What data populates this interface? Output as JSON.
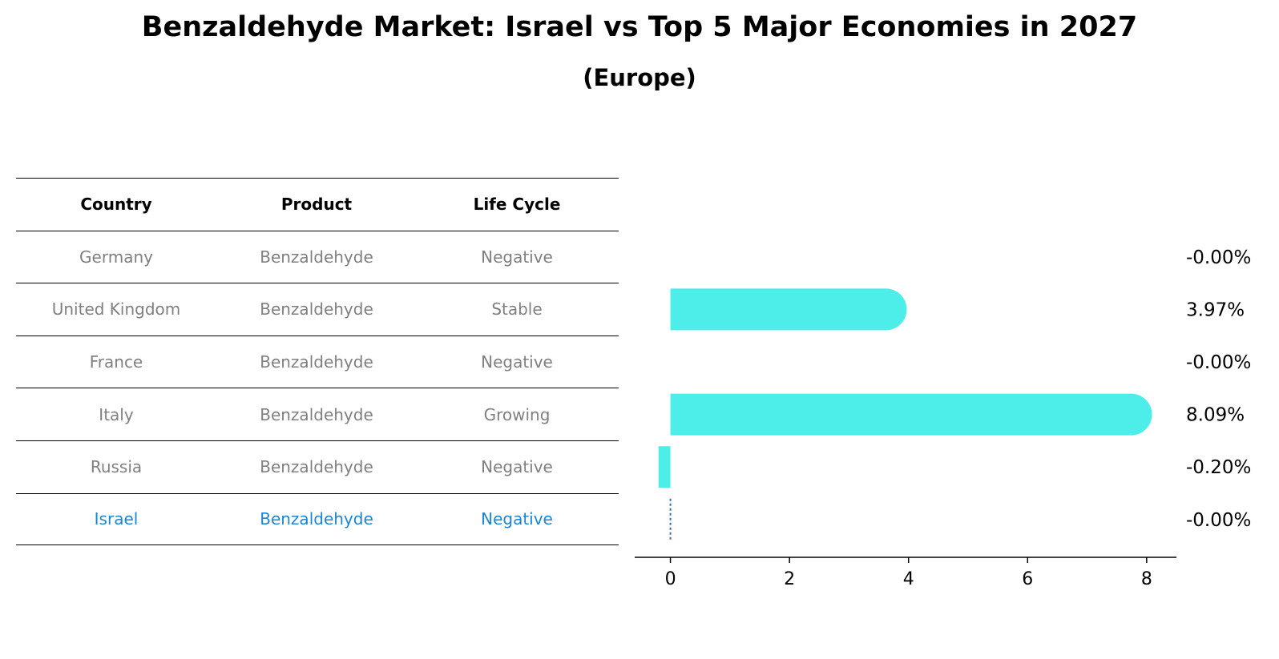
{
  "title": "Benzaldehyde Market: Israel vs Top 5 Major Economies in 2027",
  "subtitle": "(Europe)",
  "table": {
    "headers": [
      "Country",
      "Product",
      "Life Cycle"
    ],
    "rows": [
      [
        "Germany",
        "Benzaldehyde",
        "Negative"
      ],
      [
        "United Kingdom",
        "Benzaldehyde",
        "Stable"
      ],
      [
        "France",
        "Benzaldehyde",
        "Negative"
      ],
      [
        "Italy",
        "Benzaldehyde",
        "Growing"
      ],
      [
        "Russia",
        "Benzaldehyde",
        "Negative"
      ],
      [
        "Israel",
        "Benzaldehyde",
        "Negative"
      ]
    ]
  },
  "chart_data": {
    "type": "bar",
    "orientation": "horizontal",
    "categories": [
      "Germany",
      "United Kingdom",
      "France",
      "Italy",
      "Russia",
      "Israel"
    ],
    "values": [
      0.0,
      3.97,
      0.0,
      8.09,
      -0.2,
      0.0
    ],
    "value_labels": [
      "-0.00%",
      "3.97%",
      "-0.00%",
      "8.09%",
      "-0.20%",
      "-0.00%"
    ],
    "xlim": [
      -0.6,
      8.5
    ],
    "xticks": [
      0,
      2,
      4,
      6,
      8
    ],
    "bar_color": "#4deeea",
    "zero_line_color": "#3a6ea5",
    "highlight_color": "#1a86d6",
    "grid": false
  }
}
